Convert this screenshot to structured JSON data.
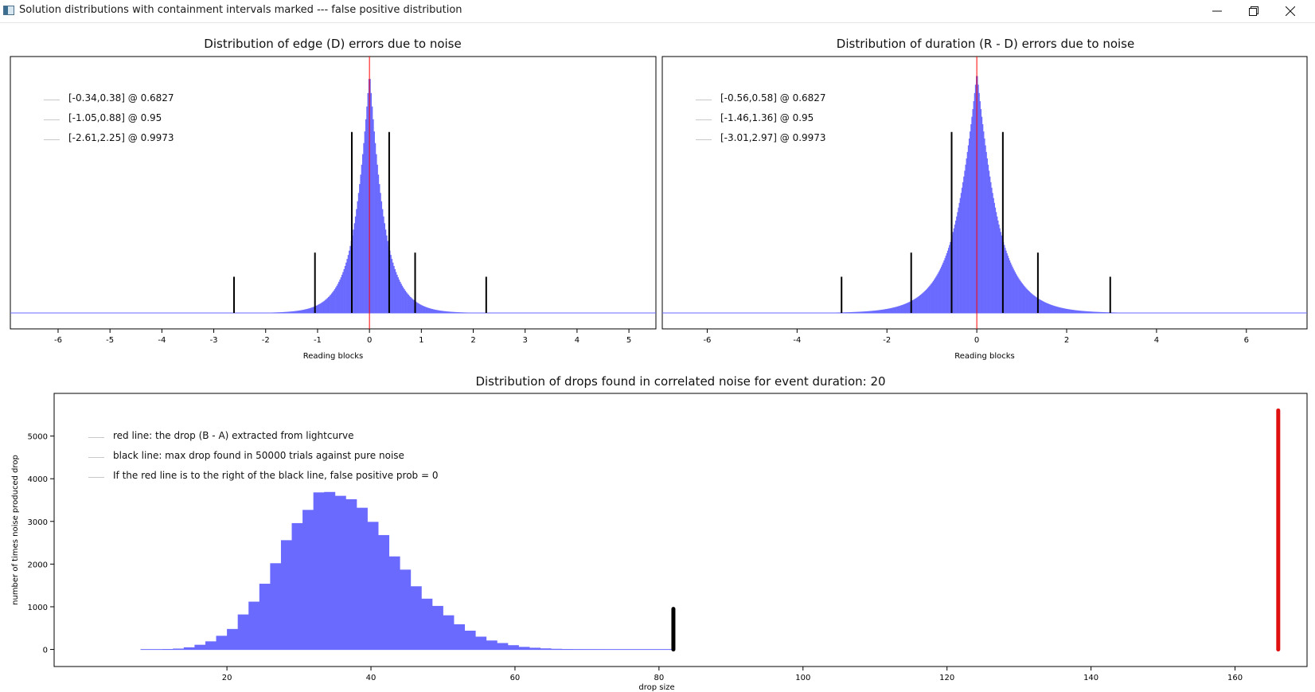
{
  "window": {
    "title": "Solution distributions with containment intervals marked --- false positive distribution",
    "buttons": [
      "minimize-icon",
      "restore-icon",
      "close-icon"
    ]
  },
  "chart_data": [
    {
      "type": "bar",
      "title": "Distribution of edge (D) errors due to noise",
      "xlabel": "Reading blocks",
      "ylabel": "",
      "xlim": [
        -6.92,
        5.52
      ],
      "xticks": [
        -6,
        -5,
        -4,
        -3,
        -2,
        -1,
        0,
        1,
        2,
        3,
        4,
        5
      ],
      "y_axis_visible": false,
      "distribution": {
        "shape": "laplace-like",
        "center": 0.0,
        "scale": 0.3,
        "peak_relative": 1.0
      },
      "series_color": "#6a6aff",
      "center_line": {
        "x": 0,
        "color": "#ff0000"
      },
      "intervals": [
        {
          "lo": -0.34,
          "hi": 0.38,
          "prob": 0.6827,
          "label": "[-0.34,0.38] @ 0.6827",
          "height_relative": 0.75
        },
        {
          "lo": -1.05,
          "hi": 0.88,
          "prob": 0.95,
          "label": "[-1.05,0.88] @ 0.95",
          "height_relative": 0.25
        },
        {
          "lo": -2.61,
          "hi": 2.25,
          "prob": 0.9973,
          "label": "[-2.61,2.25] @ 0.9973",
          "height_relative": 0.15
        }
      ]
    },
    {
      "type": "bar",
      "title": "Distribution of duration (R - D) errors due to noise",
      "xlabel": "Reading blocks",
      "ylabel": "",
      "xlim": [
        -7.0,
        7.35
      ],
      "xticks": [
        -6,
        -4,
        -2,
        0,
        2,
        4,
        6
      ],
      "y_axis_visible": false,
      "distribution": {
        "shape": "laplace-like",
        "center": 0.0,
        "scale": 0.5,
        "peak_relative": 1.0
      },
      "series_color": "#6a6aff",
      "center_line": {
        "x": 0,
        "color": "#ff0000"
      },
      "intervals": [
        {
          "lo": -0.56,
          "hi": 0.58,
          "prob": 0.6827,
          "label": "[-0.56,0.58] @ 0.6827",
          "height_relative": 0.75
        },
        {
          "lo": -1.46,
          "hi": 1.36,
          "prob": 0.95,
          "label": "[-1.46,1.36] @ 0.95",
          "height_relative": 0.25
        },
        {
          "lo": -3.01,
          "hi": 2.97,
          "prob": 0.9973,
          "label": "[-3.01,2.97] @ 0.9973",
          "height_relative": 0.15
        }
      ]
    },
    {
      "type": "bar",
      "title": "Distribution of drops found in correlated noise for event duration: 20",
      "xlabel": "drop size",
      "ylabel": "number of times noise produced drop",
      "xlim": [
        -4,
        170
      ],
      "ylim": [
        -400,
        6000
      ],
      "xticks": [
        20,
        40,
        60,
        80,
        100,
        120,
        140,
        160
      ],
      "yticks": [
        0,
        1000,
        2000,
        3000,
        4000,
        5000
      ],
      "bin_width": 1.5,
      "bins": [
        {
          "x": 8.0,
          "y": 0
        },
        {
          "x": 9.5,
          "y": 0
        },
        {
          "x": 11.0,
          "y": 10
        },
        {
          "x": 12.5,
          "y": 20
        },
        {
          "x": 14.0,
          "y": 50
        },
        {
          "x": 15.5,
          "y": 110
        },
        {
          "x": 17.0,
          "y": 190
        },
        {
          "x": 18.5,
          "y": 320
        },
        {
          "x": 20.0,
          "y": 480
        },
        {
          "x": 21.5,
          "y": 820
        },
        {
          "x": 23.0,
          "y": 1120
        },
        {
          "x": 24.5,
          "y": 1540
        },
        {
          "x": 26.0,
          "y": 2020
        },
        {
          "x": 27.5,
          "y": 2560
        },
        {
          "x": 29.0,
          "y": 2960
        },
        {
          "x": 30.5,
          "y": 3270
        },
        {
          "x": 32.0,
          "y": 3680
        },
        {
          "x": 33.5,
          "y": 3690
        },
        {
          "x": 35.0,
          "y": 3600
        },
        {
          "x": 36.5,
          "y": 3520
        },
        {
          "x": 38.0,
          "y": 3320
        },
        {
          "x": 39.5,
          "y": 2990
        },
        {
          "x": 41.0,
          "y": 2680
        },
        {
          "x": 42.5,
          "y": 2180
        },
        {
          "x": 44.0,
          "y": 1870
        },
        {
          "x": 45.5,
          "y": 1480
        },
        {
          "x": 47.0,
          "y": 1190
        },
        {
          "x": 48.5,
          "y": 1020
        },
        {
          "x": 50.0,
          "y": 800
        },
        {
          "x": 51.5,
          "y": 590
        },
        {
          "x": 53.0,
          "y": 440
        },
        {
          "x": 54.5,
          "y": 300
        },
        {
          "x": 56.0,
          "y": 210
        },
        {
          "x": 57.5,
          "y": 150
        },
        {
          "x": 59.0,
          "y": 100
        },
        {
          "x": 60.5,
          "y": 60
        },
        {
          "x": 62.0,
          "y": 40
        },
        {
          "x": 63.5,
          "y": 25
        },
        {
          "x": 65.0,
          "y": 15
        },
        {
          "x": 66.5,
          "y": 10
        },
        {
          "x": 68.0,
          "y": 5
        },
        {
          "x": 69.5,
          "y": 3
        },
        {
          "x": 71.0,
          "y": 2
        },
        {
          "x": 72.5,
          "y": 1
        }
      ],
      "series_color": "#6a6aff",
      "lines": [
        {
          "x": 82,
          "y_top": 950,
          "color": "#000000",
          "label": "black line: max drop found in 50000 trials against pure noise"
        },
        {
          "x": 166,
          "y_top": 5600,
          "color": "#e01010",
          "label": "red line: the drop (B - A) extracted from lightcurve"
        }
      ],
      "legend": [
        "red line: the drop (B - A) extracted from lightcurve",
        "black line: max drop found in 50000 trials against pure noise",
        "If the red line is to the right of the black line, false positive prob = 0"
      ]
    }
  ]
}
